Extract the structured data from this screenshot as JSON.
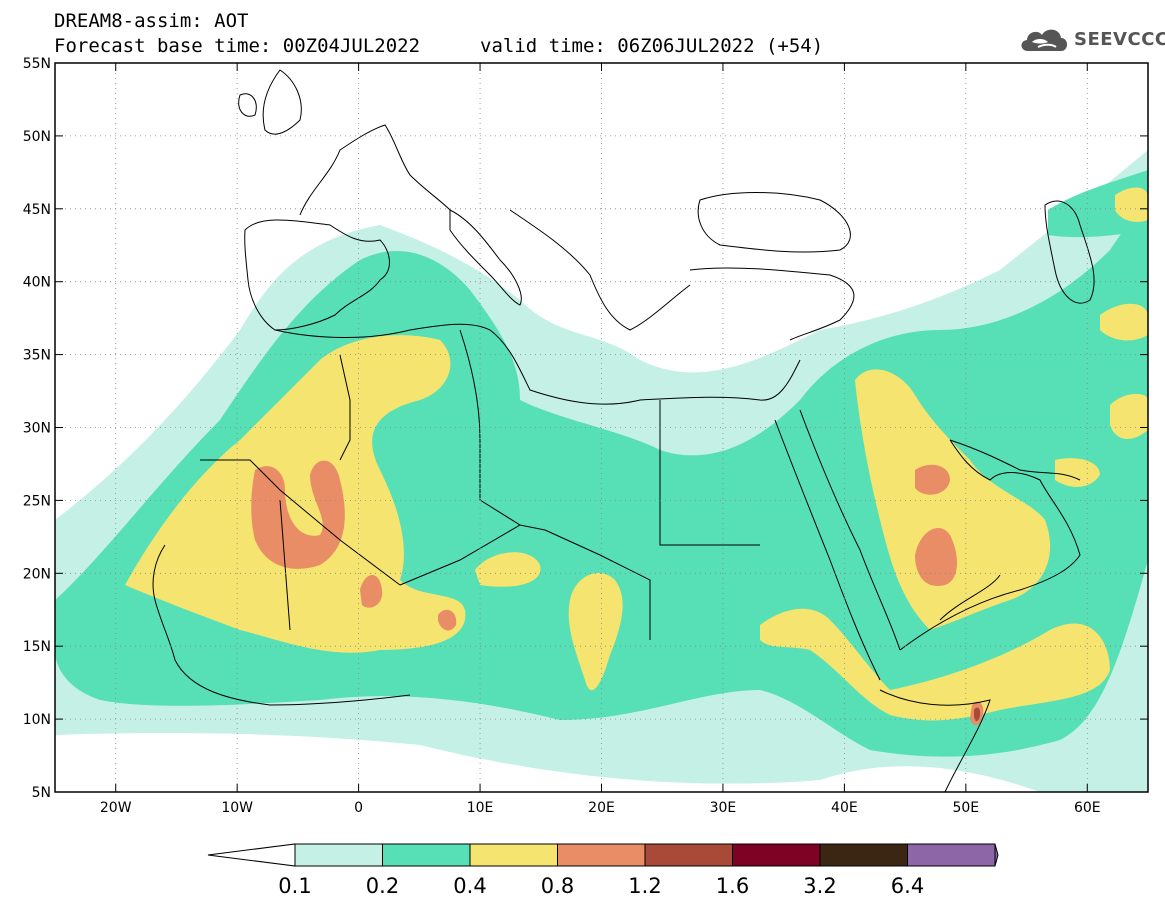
{
  "header": {
    "title": "DREAM8-assim: AOT",
    "base_time": "Forecast base time: 00Z04JUL2022",
    "valid_time": "valid time: 06Z06JUL2022 (+54)",
    "logo_text": "SEEVCCC",
    "logo_icon": "cloud-icon"
  },
  "map": {
    "lon_range": [
      -25,
      65
    ],
    "lat_range": [
      5,
      55
    ],
    "lon_ticks": [
      {
        "value": -20,
        "label": "20W"
      },
      {
        "value": -10,
        "label": "10W"
      },
      {
        "value": 0,
        "label": "0"
      },
      {
        "value": 10,
        "label": "10E"
      },
      {
        "value": 20,
        "label": "20E"
      },
      {
        "value": 30,
        "label": "30E"
      },
      {
        "value": 40,
        "label": "40E"
      },
      {
        "value": 50,
        "label": "50E"
      },
      {
        "value": 60,
        "label": "60E"
      }
    ],
    "lat_ticks": [
      {
        "value": 55,
        "label": "55N"
      },
      {
        "value": 50,
        "label": "50N"
      },
      {
        "value": 45,
        "label": "45N"
      },
      {
        "value": 40,
        "label": "40N"
      },
      {
        "value": 35,
        "label": "35N"
      },
      {
        "value": 30,
        "label": "30N"
      },
      {
        "value": 25,
        "label": "25N"
      },
      {
        "value": 20,
        "label": "20N"
      },
      {
        "value": 15,
        "label": "15N"
      },
      {
        "value": 10,
        "label": "10N"
      },
      {
        "value": 5,
        "label": "5N"
      }
    ],
    "grid": "dotted"
  },
  "colorbar": {
    "labels": [
      "0.1",
      "0.2",
      "0.4",
      "0.8",
      "1.2",
      "1.6",
      "3.2",
      "6.4"
    ],
    "colors": [
      "#ffffff",
      "#c4f0e6",
      "#57dfb5",
      "#f5e46f",
      "#e98d66",
      "#a94a38",
      "#7e0224",
      "#3a2612",
      "#8c66a6"
    ]
  },
  "colors": {
    "aot_01_02": "#c4f0e6",
    "aot_02_04": "#57dfb5",
    "aot_04_08": "#f5e46f",
    "aot_08_12": "#e98d66",
    "aot_12_16": "#a94a38"
  }
}
